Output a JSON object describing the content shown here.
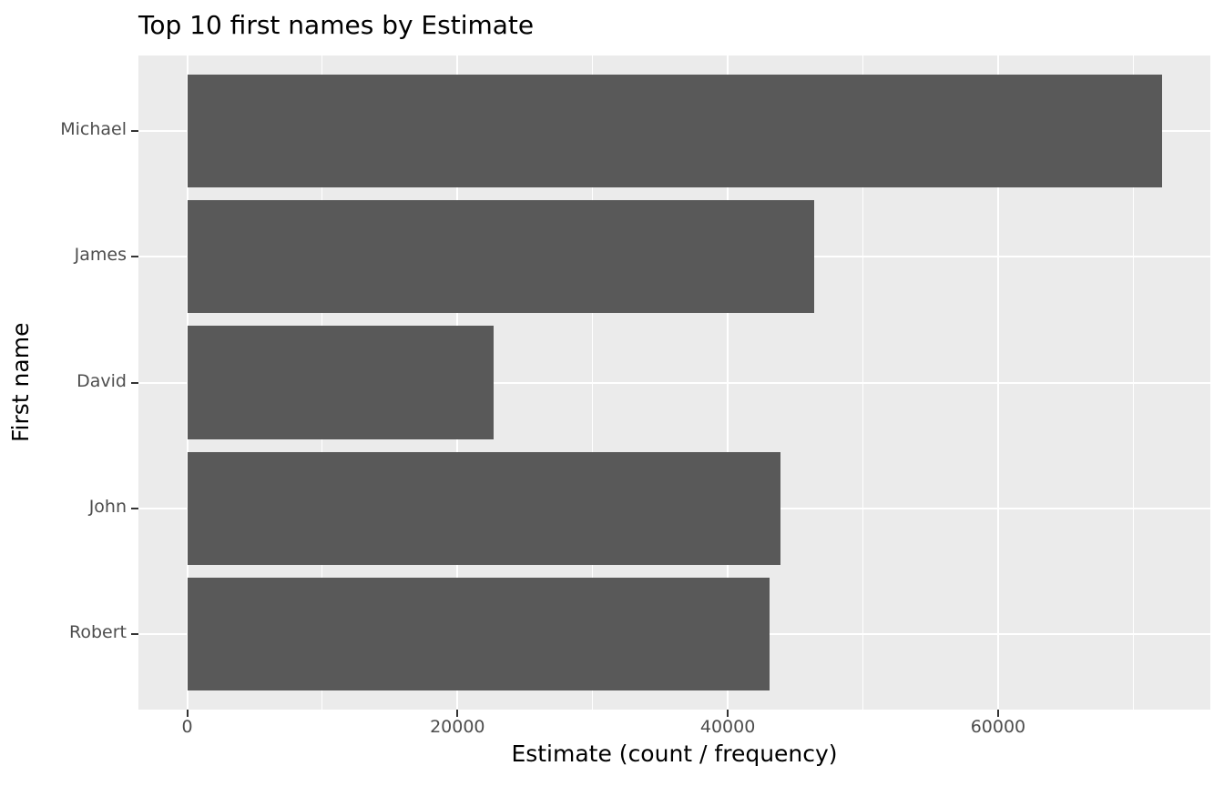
{
  "chart_data": {
    "type": "bar",
    "orientation": "horizontal",
    "title": "Top 10 first names by Estimate",
    "xlabel": "Estimate (count / frequency)",
    "ylabel": "First name",
    "categories": [
      "Michael",
      "James",
      "David",
      "John",
      "Robert"
    ],
    "values": [
      72100,
      46400,
      22700,
      43900,
      43100
    ],
    "x_ticks": [
      0,
      20000,
      40000,
      60000
    ],
    "x_tick_labels": [
      "0",
      "20000",
      "40000",
      "60000"
    ],
    "x_minor_gridlines": [
      10000,
      30000,
      50000,
      70000
    ],
    "xlim": [
      -3605,
      75705
    ],
    "grid": true,
    "legend": false,
    "colors": {
      "bar": "#595959",
      "panel_bg": "#EBEBEB",
      "grid": "#FFFFFF",
      "tick_text": "#4D4D4D",
      "title_text": "#000000",
      "tick_mark": "#333333",
      "page_bg": "#FFFFFF"
    }
  }
}
